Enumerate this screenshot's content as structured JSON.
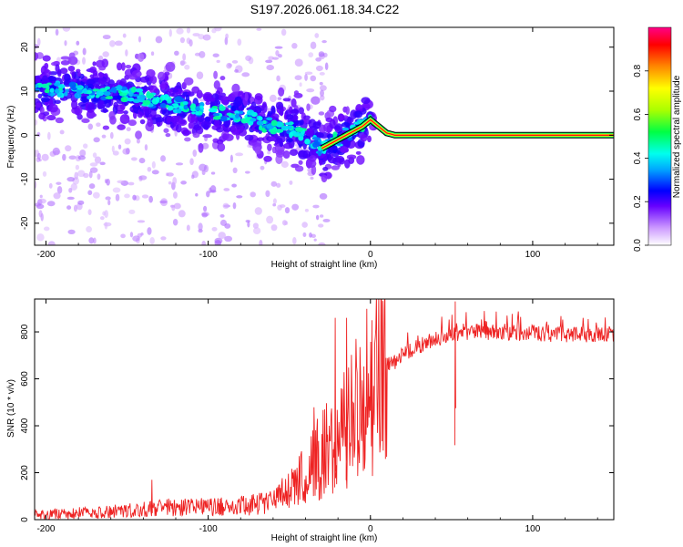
{
  "title": "S197.2026.061.18.34.C22",
  "chart_data": [
    {
      "id": "spectrogram",
      "type": "heatmap",
      "xlabel": "Height of straight line (km)",
      "ylabel": "Frequency (Hz)",
      "xlim": [
        -207,
        150
      ],
      "ylim": [
        -25,
        24.5
      ],
      "xticks": [
        -200,
        -100,
        0,
        100
      ],
      "yticks": [
        20,
        10,
        0,
        -10,
        -20
      ],
      "colorbar": {
        "label": "Normalized spectral amplitude",
        "range": [
          0,
          1
        ],
        "ticks": [
          0.0,
          0.2,
          0.4,
          0.6,
          0.8
        ],
        "tick_labels": [
          "0.0",
          "0.2",
          "0.4",
          "0.6",
          "0.8"
        ]
      },
      "ridge": {
        "x": [
          -205,
          -190,
          -175,
          -160,
          -145,
          -130,
          -115,
          -100,
          -85,
          -75,
          -65,
          -55,
          -45,
          -38,
          -30,
          -25,
          -20,
          -15,
          -10,
          -5,
          0,
          5,
          10,
          15,
          30,
          60,
          90,
          120,
          150
        ],
        "y": [
          10.5,
          10.5,
          10,
          9.5,
          9,
          7.5,
          6.5,
          5.5,
          5,
          4,
          2.5,
          2,
          1,
          -1,
          -3,
          -2,
          -1,
          0,
          1,
          2,
          3.5,
          2,
          0.5,
          0,
          0,
          0,
          0,
          0,
          0
        ]
      }
    },
    {
      "id": "snr",
      "type": "line",
      "xlabel": "Height of straight line (km)",
      "ylabel": "SNR (10 * v/v)",
      "xlim": [
        -207,
        150
      ],
      "ylim": [
        0,
        940
      ],
      "xticks": [
        -200,
        -100,
        0,
        100
      ],
      "yticks": [
        0,
        200,
        400,
        600,
        800
      ],
      "series": [
        {
          "name": "SNR",
          "color": "#ee2222",
          "envelope": {
            "x": [
              -207,
              -180,
              -150,
              -130,
              -110,
              -90,
              -75,
              -60,
              -50,
              -40,
              -30,
              -25,
              -20,
              -15,
              -10,
              -5,
              0,
              5,
              10,
              20,
              30,
              40,
              50,
              60,
              80,
              100,
              120,
              150
            ],
            "y": [
              20,
              28,
              38,
              50,
              55,
              55,
              60,
              85,
              120,
              200,
              280,
              320,
              360,
              420,
              460,
              500,
              560,
              610,
              650,
              700,
              740,
              770,
              790,
              800,
              800,
              795,
              790,
              790
            ]
          },
          "spikes": [
            {
              "x": -22,
              "y": 860
            },
            {
              "x": -15,
              "y": 860
            },
            {
              "x": 52,
              "y": 930
            },
            {
              "x": -135,
              "y": 170
            }
          ]
        }
      ]
    }
  ]
}
